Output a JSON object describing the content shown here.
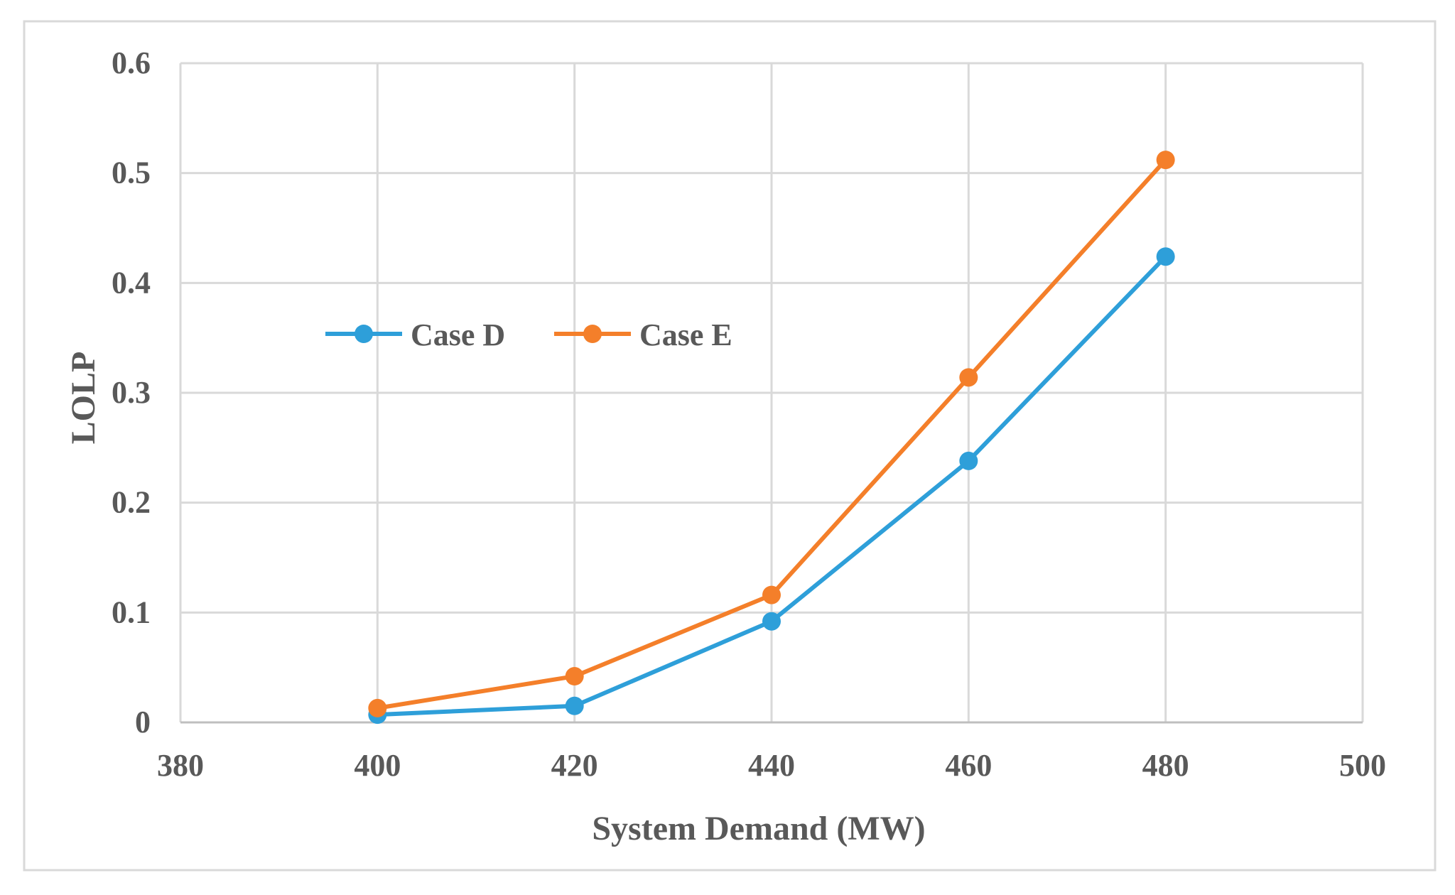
{
  "chart_data": {
    "type": "line",
    "title": "",
    "xlabel": "System Demand (MW)",
    "ylabel": "LOLP",
    "xlim": [
      380,
      500
    ],
    "ylim": [
      0,
      0.6
    ],
    "x_ticks": [
      "380",
      "400",
      "420",
      "440",
      "460",
      "480",
      "500"
    ],
    "y_ticks": [
      "0",
      "0.1",
      "0.2",
      "0.3",
      "0.4",
      "0.5",
      "0.6"
    ],
    "grid": true,
    "legend_position": "middle-left inside plot",
    "x": [
      400,
      420,
      440,
      460,
      480
    ],
    "series": [
      {
        "name": "Case D",
        "color": "#2e9fd9",
        "values": [
          0.007,
          0.015,
          0.092,
          0.238,
          0.424
        ]
      },
      {
        "name": "Case E",
        "color": "#f47f2a",
        "values": [
          0.013,
          0.042,
          0.116,
          0.314,
          0.512
        ]
      }
    ]
  }
}
